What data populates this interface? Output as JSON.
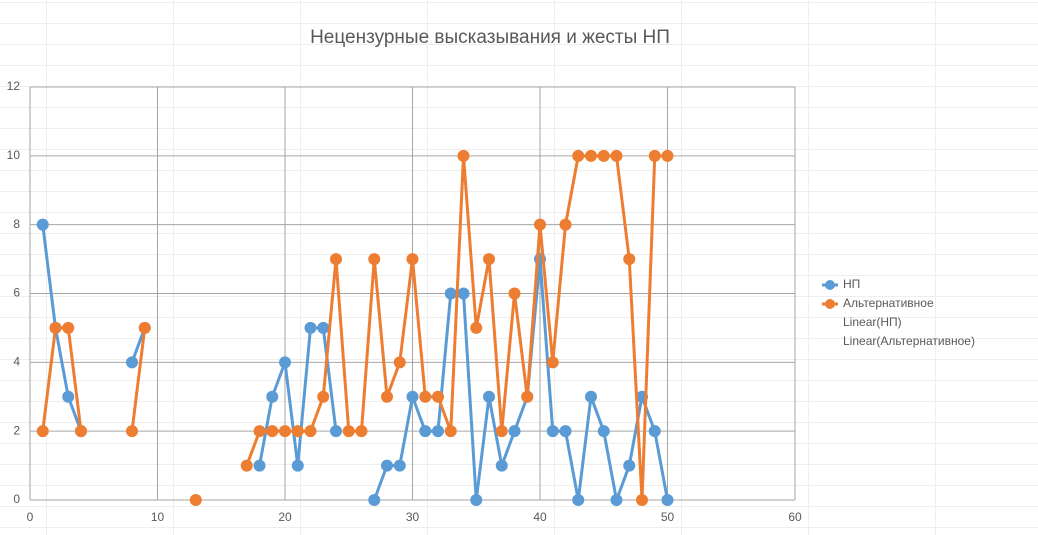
{
  "chart_data": {
    "type": "line",
    "title": "Нецензурные высказывания и жесты НП",
    "x": [
      1,
      2,
      3,
      4,
      5,
      6,
      7,
      8,
      9,
      10,
      11,
      12,
      13,
      14,
      15,
      16,
      17,
      18,
      19,
      20,
      21,
      22,
      23,
      24,
      25,
      26,
      27,
      28,
      29,
      30,
      31,
      32,
      33,
      34,
      35,
      36,
      37,
      38,
      39,
      40,
      41,
      42,
      43,
      44,
      45,
      46,
      47,
      48,
      49,
      50
    ],
    "series": [
      {
        "name": "НП",
        "color": "#5b9bd5",
        "values": [
          8,
          5,
          3,
          2,
          null,
          null,
          null,
          4,
          5,
          null,
          null,
          null,
          null,
          null,
          null,
          null,
          null,
          1,
          3,
          4,
          1,
          5,
          5,
          2,
          null,
          null,
          0,
          1,
          1,
          3,
          2,
          2,
          6,
          6,
          0,
          3,
          1,
          2,
          3,
          7,
          2,
          2,
          0,
          3,
          2,
          0,
          1,
          3,
          2,
          0
        ]
      },
      {
        "name": "Альтернативное",
        "color": "#ed7d31",
        "values": [
          2,
          5,
          5,
          2,
          null,
          null,
          null,
          2,
          5,
          null,
          null,
          null,
          0,
          null,
          null,
          null,
          1,
          2,
          2,
          2,
          2,
          2,
          3,
          7,
          2,
          2,
          7,
          3,
          4,
          7,
          3,
          3,
          2,
          10,
          5,
          7,
          2,
          6,
          3,
          8,
          4,
          8,
          10,
          10,
          10,
          10,
          7,
          0,
          10,
          10
        ]
      }
    ],
    "trendline_legend": [
      "Linear(НП)",
      "Linear(Альтернативное)"
    ],
    "xlim": [
      0,
      60
    ],
    "xticks": [
      0,
      10,
      20,
      30,
      40,
      50,
      60
    ],
    "ylim": [
      0,
      12
    ],
    "yticks": [
      0,
      2,
      4,
      6,
      8,
      10,
      12
    ],
    "grid": true,
    "legend": "right"
  }
}
